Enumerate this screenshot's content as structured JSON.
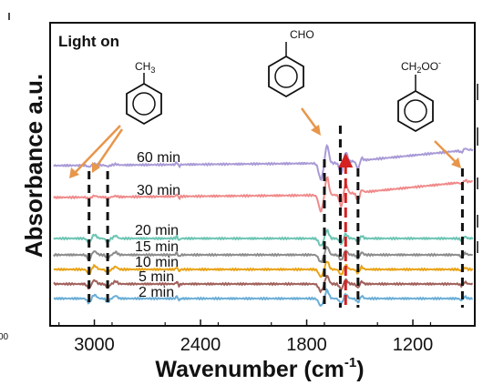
{
  "chart_data": {
    "type": "line",
    "title": "",
    "xlabel": "Wavenumber (cm",
    "xlabel_sup": "-1",
    "xlabel_close": ")",
    "ylabel": "Absorbance a.u.",
    "xlim": [
      3250,
      850
    ],
    "x_reversed": true,
    "xticks": [
      3000,
      2400,
      1800,
      1200
    ],
    "xtick_labels": [
      "3000",
      "2400",
      "1800",
      "1200"
    ],
    "grid": false,
    "annotation": "Light on",
    "edge_fragment": "00",
    "series": [
      {
        "name": "2 min",
        "color": "#6aaed6",
        "offset": 0
      },
      {
        "name": "5 min",
        "color": "#a0605a",
        "offset": 1
      },
      {
        "name": "10 min",
        "color": "#e8a317",
        "offset": 2
      },
      {
        "name": "15 min",
        "color": "#8c8c8c",
        "offset": 3
      },
      {
        "name": "20 min",
        "color": "#6cc4b4",
        "offset": 4
      },
      {
        "name": "30 min",
        "color": "#f08a8a",
        "offset": 5
      },
      {
        "name": "60 min",
        "color": "#a99ad6",
        "offset": 6
      }
    ],
    "peak_markers_cm": [
      3030,
      2925,
      1700,
      1610,
      1510,
      920
    ],
    "structures": [
      {
        "label": "CH",
        "subscript": "3",
        "name": "toluene",
        "points_to_cm": [
          3030,
          2925
        ]
      },
      {
        "label": "CHO",
        "subscript": "",
        "name": "benzaldehyde",
        "points_to_cm": [
          1700
        ]
      },
      {
        "label": "CH",
        "subscript": "2",
        "suffix": "OO",
        "superscript": "-",
        "name": "benzyl peroxy",
        "points_to_cm": [
          920
        ]
      }
    ],
    "arrow_color": "#d42020",
    "arrow_x_cm": 1580
  }
}
